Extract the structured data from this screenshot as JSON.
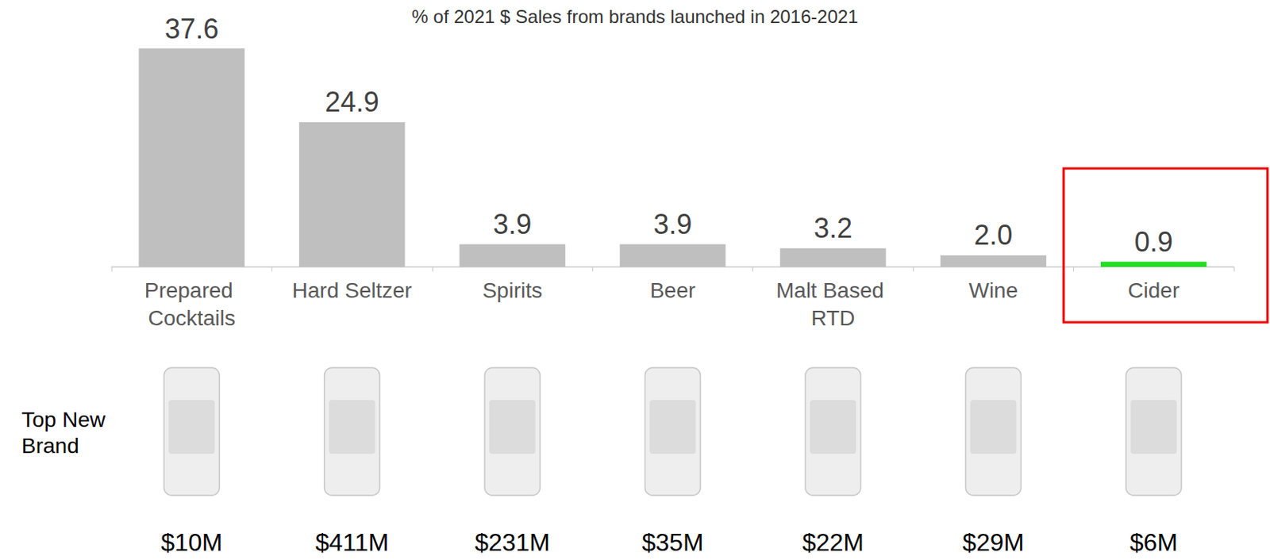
{
  "chart_data": {
    "type": "bar",
    "title": "% of 2021 $ Sales from brands launched in 2016-2021",
    "categories": [
      "Prepared Cocktails",
      "Hard Seltzer",
      "Spirits",
      "Beer",
      "Malt Based RTD",
      "Wine",
      "Cider"
    ],
    "values": [
      37.6,
      24.9,
      3.9,
      3.9,
      3.2,
      2.0,
      0.9
    ],
    "value_labels": [
      "37.6",
      "24.9",
      "3.9",
      "3.9",
      "3.2",
      "2.0",
      "0.9"
    ],
    "colors": [
      "#bfbfbf",
      "#bfbfbf",
      "#bfbfbf",
      "#bfbfbf",
      "#bfbfbf",
      "#bfbfbf",
      "#22dd22"
    ],
    "ylim": [
      0,
      37.6
    ],
    "grid": false,
    "tick_labels": "x",
    "data_labels": true,
    "brand_sales": {
      "title": "Top New Brand",
      "values": [
        10,
        411,
        231,
        35,
        22,
        29,
        6
      ],
      "value_labels": [
        "$10M",
        "$411M",
        "$231M",
        "$35M",
        "$22M",
        "$29M",
        "$6M"
      ]
    }
  }
}
